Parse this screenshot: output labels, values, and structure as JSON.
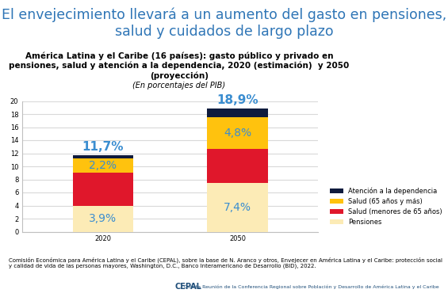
{
  "slide_title": "El envejecimiento llevará a un aumento del gasto en pensiones, salud y cuidados de largo plazo",
  "source": "Comisión Económica para América Latina y el Caribe (CEPAL), sobre la base de N. Aranco y otros, Envejecer en América Latina y el Caribe: protección social y calidad de vida de las personas mayores, Washington, D.C., Banco Interamericano de Desarrollo (BID), 2022.",
  "footer": [
    "CEPAL",
    "Quinta Reunión de la Conferencia Regional sobre Población y Desarrollo de América Latina y el Caribe"
  ],
  "chart_data": {
    "type": "bar",
    "stacked": true,
    "title": "América Latina y el Caribe (16 países): gasto público y privado en pensiones, salud y atención a la dependencia, 2020 (estimación)  y 2050 (proyección)",
    "subtitle": "(En porcentajes del PIB)",
    "categories": [
      "2020",
      "2050"
    ],
    "series": [
      {
        "name": "Pensiones",
        "color": "#fcebb6",
        "values": [
          3.9,
          7.4
        ],
        "value_labels": [
          "3,9%",
          "7,4%"
        ]
      },
      {
        "name": "Salud (menores de 65 años)",
        "color": "#e0172b",
        "values": [
          5.1,
          5.3
        ]
      },
      {
        "name": "Salud (65 años y más)",
        "color": "#ffc20e",
        "values": [
          2.2,
          4.8
        ],
        "value_labels": [
          "2,2%",
          "4,8%"
        ]
      },
      {
        "name": "Atención a la dependencia",
        "color": "#0f1b3d",
        "values": [
          0.5,
          1.4
        ]
      }
    ],
    "totals": [
      11.7,
      18.9
    ],
    "total_labels": [
      "11,7%",
      "18,9%"
    ],
    "ylim": [
      0,
      20
    ],
    "yticks": [
      0,
      2,
      4,
      6,
      8,
      10,
      12,
      14,
      16,
      18,
      20
    ],
    "grid": true,
    "legend": "lower right",
    "data_labels": true
  }
}
